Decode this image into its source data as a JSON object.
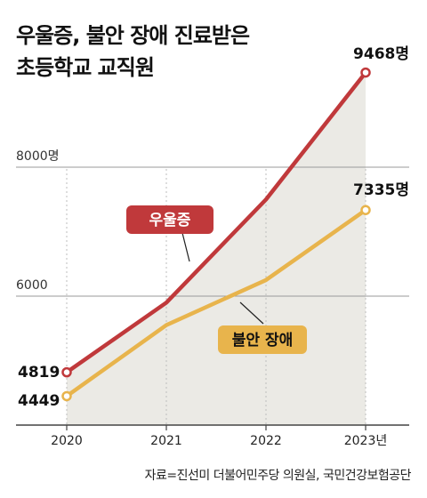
{
  "header": {
    "title_line1": "우울증, 불안 장애 진료받은",
    "title_line2": "초등학교 교직원"
  },
  "source": "자료=진선미 더불어민주당 의원실, 국민건강보험공단",
  "chart_data": {
    "type": "line",
    "categories": [
      "2020",
      "2021",
      "2022",
      "2023년"
    ],
    "ylim": [
      4000,
      10200
    ],
    "yticks": [
      {
        "value": 8000,
        "label": "8000명"
      },
      {
        "value": 6000,
        "label": "6000"
      }
    ],
    "series": [
      {
        "name": "우울증",
        "values": [
          4819,
          5900,
          7500,
          9468
        ],
        "labels": [
          "4819",
          "",
          "",
          "9468명"
        ],
        "color": "#c0393b"
      },
      {
        "name": "불안 장애",
        "values": [
          4449,
          5550,
          6250,
          7335
        ],
        "labels": [
          "4449",
          "",
          "",
          "7335명"
        ],
        "color": "#e8b44c"
      }
    ],
    "area_fill": "#ebeae5",
    "grid": true
  }
}
